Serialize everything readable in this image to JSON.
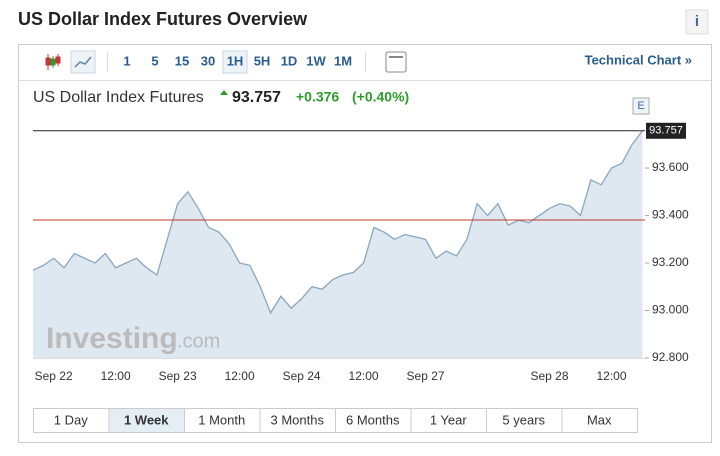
{
  "header": {
    "title": "US Dollar Index Futures Overview",
    "info": "i"
  },
  "toolbar": {
    "intervals": [
      "1",
      "5",
      "15",
      "30",
      "1H",
      "5H",
      "1D",
      "1W",
      "1M"
    ],
    "selected": 4,
    "link": "Technical Chart »"
  },
  "quote": {
    "name": "US Dollar Index Futures",
    "price": "93.757",
    "change": "+0.376",
    "change_pct": "(+0.40%)"
  },
  "watermark": {
    "brand": "Investing",
    "suffix": ".com"
  },
  "marker": "E",
  "ranges": {
    "buttons": [
      "1 Day",
      "1 Week",
      "1 Month",
      "3 Months",
      "6 Months",
      "1 Year",
      "5 years",
      "Max"
    ],
    "selected": 1
  },
  "chart_data": {
    "type": "area",
    "categories": [
      null,
      null,
      "Sep 22",
      null,
      null,
      null,
      null,
      null,
      "12:00",
      null,
      null,
      null,
      null,
      null,
      "Sep 23",
      null,
      null,
      null,
      null,
      null,
      "12:00",
      null,
      null,
      null,
      null,
      null,
      "Sep 24",
      null,
      null,
      null,
      null,
      null,
      "12:00",
      null,
      null,
      null,
      null,
      null,
      "Sep 27",
      null,
      null,
      null,
      null,
      null,
      null,
      null,
      null,
      null,
      null,
      null,
      "Sep 28",
      null,
      null,
      null,
      null,
      null,
      "12:00",
      null,
      null,
      null
    ],
    "values": [
      93.17,
      93.19,
      93.22,
      93.18,
      93.24,
      93.22,
      93.2,
      93.24,
      93.18,
      93.2,
      93.22,
      93.18,
      93.15,
      93.3,
      93.45,
      93.5,
      93.43,
      93.35,
      93.33,
      93.28,
      93.2,
      93.19,
      93.1,
      92.99,
      93.06,
      93.01,
      93.05,
      93.1,
      93.09,
      93.13,
      93.15,
      93.16,
      93.2,
      93.35,
      93.33,
      93.3,
      93.32,
      93.31,
      93.3,
      93.22,
      93.25,
      93.23,
      93.3,
      93.45,
      93.4,
      93.45,
      93.36,
      93.38,
      93.37,
      93.4,
      93.43,
      93.45,
      93.44,
      93.4,
      93.55,
      93.53,
      93.6,
      93.62,
      93.7,
      93.757
    ],
    "color": "#8aa7bf",
    "fill": "#dde8f0",
    "last_price": 93.757,
    "last_price_color": "#222222",
    "prev_close": 93.381,
    "prev_close_color": "#c0392b",
    "ylim": [
      92.8,
      93.815
    ],
    "yticks": [
      {
        "value": 92.8,
        "label": "92.800"
      },
      {
        "value": 93.0,
        "label": "93.000"
      },
      {
        "value": 93.2,
        "label": "93.200"
      },
      {
        "value": 93.4,
        "label": "93.400"
      },
      {
        "value": 93.6,
        "label": "93.600"
      }
    ]
  }
}
